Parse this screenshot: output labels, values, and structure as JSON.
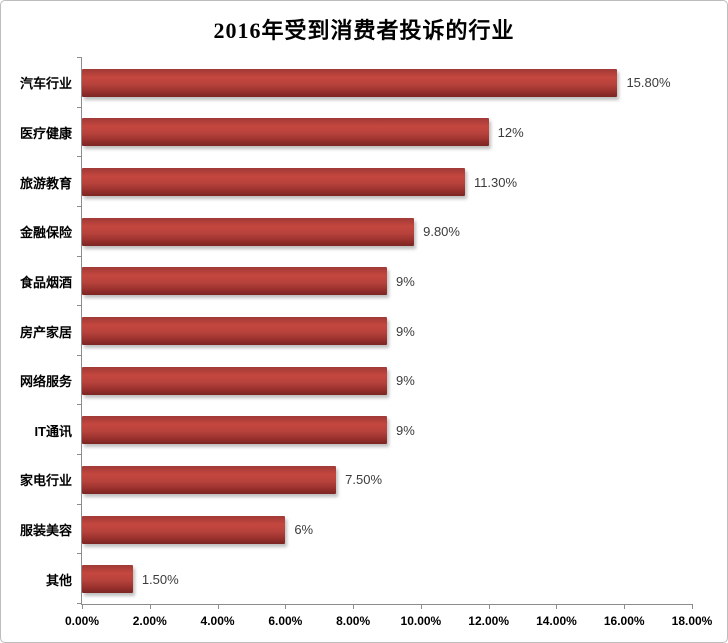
{
  "chart_data": {
    "type": "bar",
    "orientation": "horizontal",
    "title": "2016年受到消费者投诉的行业",
    "categories": [
      "汽车行业",
      "医疗健康",
      "旅游教育",
      "金融保险",
      "食品烟酒",
      "房产家居",
      "网络服务",
      "IT通讯",
      "家电行业",
      "服装美容",
      "其他"
    ],
    "values": [
      15.8,
      12,
      11.3,
      9.8,
      9,
      9,
      9,
      9,
      7.5,
      6,
      1.5
    ],
    "value_labels": [
      "15.80%",
      "12%",
      "11.30%",
      "9.80%",
      "9%",
      "9%",
      "9%",
      "9%",
      "7.50%",
      "6%",
      "1.50%"
    ],
    "x_tick_labels": [
      "0.00%",
      "2.00%",
      "4.00%",
      "6.00%",
      "8.00%",
      "10.00%",
      "12.00%",
      "14.00%",
      "16.00%",
      "18.00%"
    ],
    "xlim": [
      0,
      18
    ],
    "xlabel": "",
    "ylabel": "",
    "grid": false,
    "legend": false,
    "colors": {
      "bar": "#b9423c",
      "axis": "#8c8c8c",
      "title_text": "#000000",
      "label_text": "#3b3b3b"
    }
  }
}
